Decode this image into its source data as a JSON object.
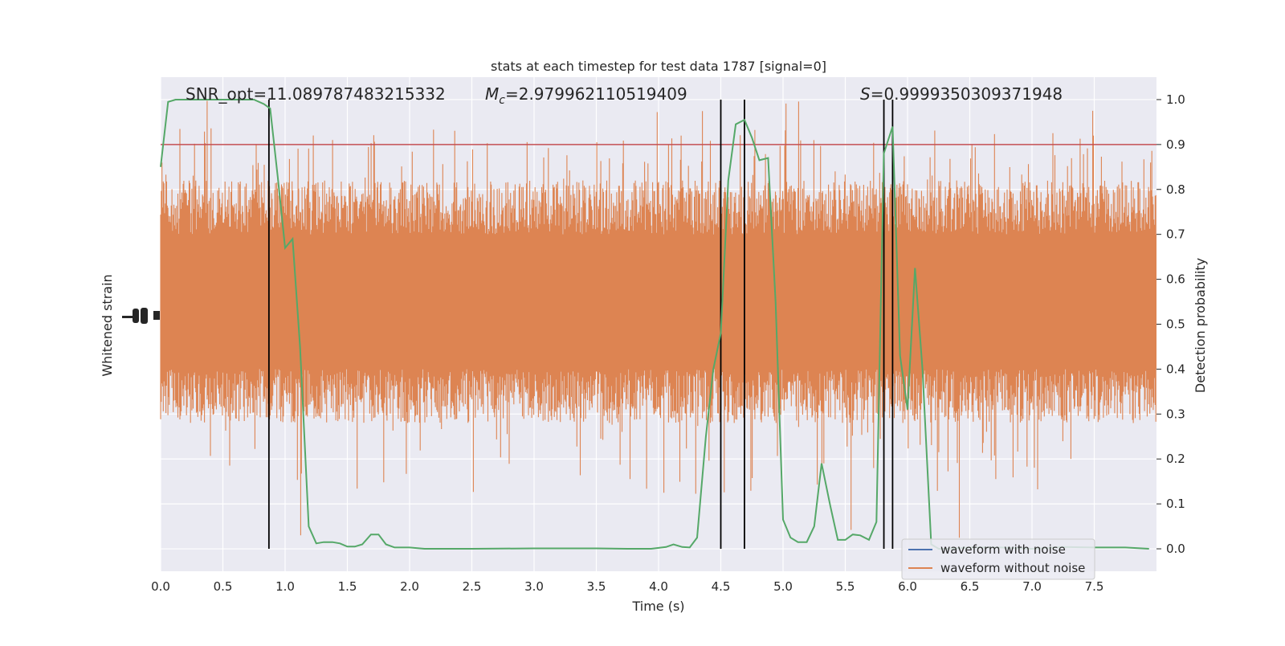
{
  "chart_data": {
    "type": "line",
    "title": "stats at each timestep for test data 1787 [signal=0]",
    "xlabel": "Time (s)",
    "ylabel_left": "Whitened strain",
    "ylabel_right": "Detection probability",
    "xlim": [
      0.0,
      8.0
    ],
    "ylim_right": [
      -0.05,
      1.05
    ],
    "x_ticks": [
      "0.0",
      "0.5",
      "1.0",
      "1.5",
      "2.0",
      "2.5",
      "3.0",
      "3.5",
      "4.0",
      "4.5",
      "5.0",
      "5.5",
      "6.0",
      "6.5",
      "7.0",
      "7.5"
    ],
    "y_ticks_right": [
      "0.0",
      "0.1",
      "0.2",
      "0.3",
      "0.4",
      "0.5",
      "0.6",
      "0.7",
      "0.8",
      "0.9",
      "1.0"
    ],
    "grid": true,
    "legend_position": "lower-right",
    "annotations": {
      "snr": "SNR_opt=11.089787483215332",
      "mc_symbol": "M",
      "mc_sub": "c",
      "mc_value": "=2.979962110519409",
      "s_symbol": "S",
      "s_value": "=0.9999350309371948"
    },
    "threshold": 0.9,
    "vertical_lines": [
      0.87,
      4.5,
      4.69,
      5.81,
      5.88
    ],
    "series": [
      {
        "name": "waveform with noise",
        "color": "#4c72b0",
        "x": [],
        "y": []
      },
      {
        "name": "waveform without noise",
        "color": "#dd8452",
        "style": "dense noise band, about 0.3-0.8 on the probability axis, occasional spikes from 0.0 to 1.0"
      },
      {
        "name": "",
        "color": "#55a868",
        "x": [
          0.0,
          0.06,
          0.12,
          0.25,
          0.5,
          0.75,
          0.83,
          0.88,
          0.94,
          1.0,
          1.06,
          1.12,
          1.19,
          1.25,
          1.31,
          1.38,
          1.44,
          1.5,
          1.56,
          1.62,
          1.69,
          1.75,
          1.81,
          1.88,
          2.0,
          2.12,
          2.5,
          3.0,
          3.5,
          3.75,
          3.94,
          4.06,
          4.12,
          4.19,
          4.25,
          4.31,
          4.38,
          4.44,
          4.5,
          4.56,
          4.62,
          4.69,
          4.75,
          4.81,
          4.88,
          4.94,
          5.0,
          5.06,
          5.12,
          5.19,
          5.25,
          5.31,
          5.38,
          5.44,
          5.5,
          5.56,
          5.62,
          5.69,
          5.75,
          5.81,
          5.88,
          5.94,
          6.0,
          6.06,
          6.12,
          6.19,
          6.25,
          6.31,
          6.5,
          6.75,
          7.0,
          7.25,
          7.5,
          7.75,
          7.94
        ],
        "y": [
          0.85,
          0.995,
          1.0,
          1.0,
          1.0,
          1.0,
          0.99,
          0.98,
          0.83,
          0.67,
          0.69,
          0.45,
          0.05,
          0.012,
          0.015,
          0.015,
          0.012,
          0.005,
          0.005,
          0.01,
          0.032,
          0.032,
          0.01,
          0.003,
          0.003,
          0.0,
          0.0,
          0.001,
          0.001,
          0.0,
          0.0,
          0.004,
          0.01,
          0.004,
          0.003,
          0.025,
          0.25,
          0.4,
          0.48,
          0.82,
          0.945,
          0.955,
          0.915,
          0.865,
          0.87,
          0.55,
          0.065,
          0.025,
          0.015,
          0.015,
          0.05,
          0.19,
          0.095,
          0.02,
          0.02,
          0.032,
          0.03,
          0.02,
          0.06,
          0.88,
          0.94,
          0.43,
          0.31,
          0.625,
          0.4,
          0.01,
          0.0,
          0.0,
          0.003,
          0.003,
          0.0,
          0.004,
          0.003,
          0.003,
          0.0
        ]
      }
    ]
  },
  "legend": {
    "entries": [
      "waveform with noise",
      "waveform without noise"
    ]
  }
}
